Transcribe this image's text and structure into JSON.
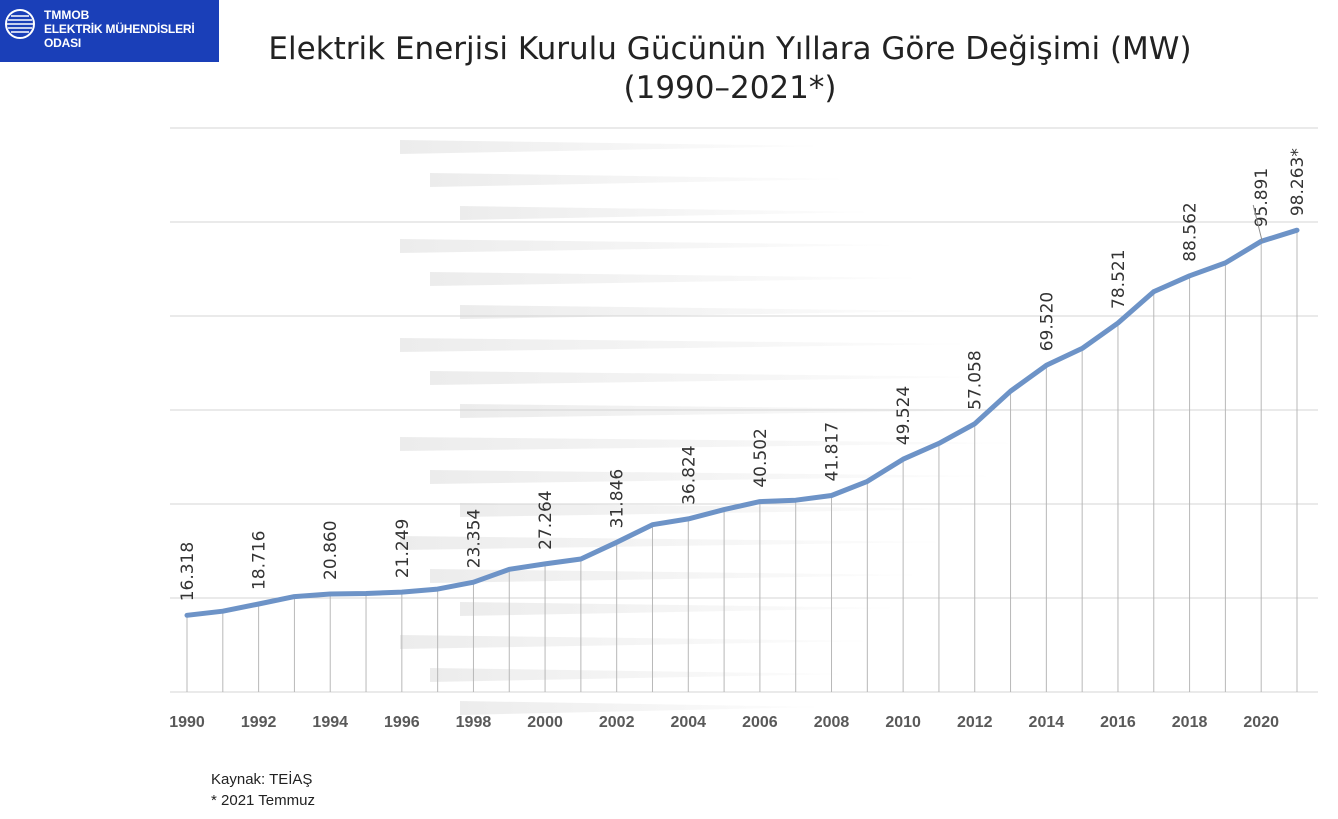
{
  "logo": {
    "line1": "TMMOB",
    "line2": "ELEKTRİK MÜHENDİSLERİ ODASI"
  },
  "title": "Elektrik Enerjisi Kurulu Gücünün Yıllara Göre Değişimi (MW)",
  "subtitle": "(1990–2021*)",
  "source": "Kaynak: TEİAŞ",
  "footnote": "* 2021 Temmuz",
  "colors": {
    "line": "#6d93c7",
    "grid": "#d4d4d4",
    "tick_text": "#595959",
    "label_text": "#333333",
    "logo_bg": "#1a3fb8"
  },
  "chart_data": {
    "type": "line",
    "title": "Elektrik Enerjisi Kurulu Gücünün Yıllara Göre Değişimi (MW)",
    "xlabel": "",
    "ylabel": "",
    "ylim": [
      0,
      120000
    ],
    "grid": true,
    "x": [
      1990,
      1991,
      1992,
      1993,
      1994,
      1995,
      1996,
      1997,
      1998,
      1999,
      2000,
      2001,
      2002,
      2003,
      2004,
      2005,
      2006,
      2007,
      2008,
      2009,
      2010,
      2011,
      2012,
      2013,
      2014,
      2015,
      2016,
      2017,
      2018,
      2019,
      2020,
      2021
    ],
    "values": [
      16318,
      17200,
      18716,
      20300,
      20860,
      20950,
      21249,
      21900,
      23354,
      26100,
      27264,
      28300,
      31846,
      35600,
      36824,
      38800,
      40502,
      40800,
      41817,
      44800,
      49524,
      52900,
      57058,
      64000,
      69520,
      73100,
      78521,
      85200,
      88562,
      91300,
      95891,
      98263
    ],
    "tick_labels": [
      "1990",
      "1992",
      "1994",
      "1996",
      "1998",
      "2000",
      "2002",
      "2004",
      "2006",
      "2008",
      "2010",
      "2012",
      "2014",
      "2016",
      "2018",
      "2020"
    ],
    "data_labels": [
      {
        "year": 1990,
        "text": "16.318"
      },
      {
        "year": 1992,
        "text": "18.716"
      },
      {
        "year": 1994,
        "text": "20.860"
      },
      {
        "year": 1996,
        "text": "21.249"
      },
      {
        "year": 1998,
        "text": "23.354"
      },
      {
        "year": 2000,
        "text": "27.264"
      },
      {
        "year": 2002,
        "text": "31.846"
      },
      {
        "year": 2004,
        "text": "36.824"
      },
      {
        "year": 2006,
        "text": "40.502"
      },
      {
        "year": 2008,
        "text": "41.817"
      },
      {
        "year": 2010,
        "text": "49.524"
      },
      {
        "year": 2012,
        "text": "57.058"
      },
      {
        "year": 2014,
        "text": "69.520"
      },
      {
        "year": 2016,
        "text": "78.521"
      },
      {
        "year": 2018,
        "text": "88.562"
      },
      {
        "year": 2020,
        "text": "95.891"
      },
      {
        "year": 2021,
        "text": "98.263*"
      }
    ]
  }
}
